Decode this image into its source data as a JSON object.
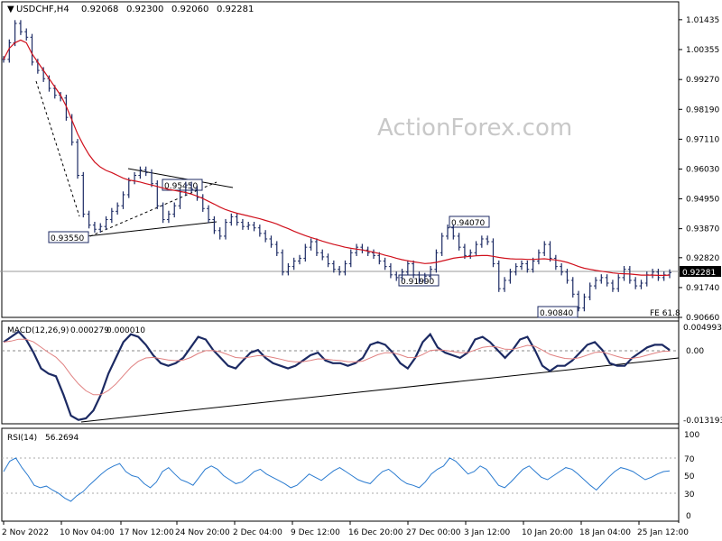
{
  "chart_data": {
    "type": "line",
    "symbol": "USDCHF,H4",
    "ohlc_header": [
      "0.92068",
      "0.92300",
      "0.92060",
      "0.92281"
    ],
    "watermark": "ActionForex.com",
    "last_price": "0.92281",
    "fe_label": "FE 61.8",
    "price_axis": {
      "ylim": [
        0.9066,
        1.0143
      ],
      "ticks": [
        "1.01435",
        "1.00355",
        "0.99270",
        "0.98190",
        "0.97110",
        "0.96030",
        "0.94950",
        "0.93870",
        "0.92820",
        "0.91740",
        "0.90660"
      ]
    },
    "x_labels": [
      "2 Nov 2022",
      "10 Nov 04:00",
      "17 Nov 12:00",
      "24 Nov 20:00",
      "2 Dec 04:00",
      "9 Dec 12:00",
      "16 Dec 20:00",
      "27 Dec 00:00",
      "3 Jan 12:00",
      "10 Jan 20:00",
      "18 Jan 04:00",
      "25 Jan 12:00"
    ],
    "annotations": [
      "0.93550",
      "0.95450",
      "0.94070",
      "0.91990",
      "0.90840"
    ],
    "series": [
      {
        "name": "USDCHF",
        "color": "#1c2a63",
        "values": [
          1.0,
          1.006,
          1.013,
          1.01,
          1.008,
          0.999,
          0.996,
          0.993,
          0.9895,
          0.987,
          0.986,
          0.979,
          0.97,
          0.958,
          0.944,
          0.94,
          0.9385,
          0.9395,
          0.942,
          0.945,
          0.947,
          0.951,
          0.956,
          0.958,
          0.96,
          0.959,
          0.955,
          0.947,
          0.942,
          0.944,
          0.947,
          0.952,
          0.9545,
          0.953,
          0.95,
          0.946,
          0.942,
          0.938,
          0.936,
          0.941,
          0.943,
          0.941,
          0.9395,
          0.94,
          0.939,
          0.937,
          0.935,
          0.933,
          0.93,
          0.923,
          0.925,
          0.927,
          0.928,
          0.932,
          0.934,
          0.93,
          0.9285,
          0.926,
          0.924,
          0.923,
          0.926,
          0.93,
          0.932,
          0.931,
          0.93,
          0.929,
          0.927,
          0.925,
          0.922,
          0.921,
          0.923,
          0.926,
          0.922,
          0.92,
          0.9215,
          0.924,
          0.93,
          0.936,
          0.939,
          0.936,
          0.932,
          0.929,
          0.93,
          0.933,
          0.935,
          0.934,
          0.926,
          0.917,
          0.92,
          0.923,
          0.925,
          0.926,
          0.924,
          0.927,
          0.93,
          0.933,
          0.928,
          0.925,
          0.923,
          0.92,
          0.915,
          0.91,
          0.914,
          0.918,
          0.92,
          0.921,
          0.919,
          0.917,
          0.921,
          0.924,
          0.92,
          0.918,
          0.919,
          0.922,
          0.923,
          0.921,
          0.922,
          0.9228
        ]
      },
      {
        "name": "SMA",
        "color": "#d0101c",
        "values": [
          1.0,
          1.004,
          1.006,
          1.007,
          1.006,
          1.002,
          0.999,
          0.996,
          0.993,
          0.99,
          0.987,
          0.983,
          0.978,
          0.973,
          0.969,
          0.9655,
          0.9628,
          0.961,
          0.9598,
          0.959,
          0.958,
          0.957,
          0.9563,
          0.956,
          0.9556,
          0.955,
          0.9545,
          0.954,
          0.9534,
          0.9529,
          0.9526,
          0.9522,
          0.9518,
          0.9512,
          0.9505,
          0.9496,
          0.9486,
          0.9476,
          0.9465,
          0.9456,
          0.9449,
          0.9443,
          0.9438,
          0.9433,
          0.9428,
          0.9423,
          0.9417,
          0.9411,
          0.9404,
          0.9395,
          0.9387,
          0.9378,
          0.937,
          0.9362,
          0.9355,
          0.9349,
          0.9342,
          0.9336,
          0.933,
          0.9325,
          0.932,
          0.9316,
          0.9313,
          0.931,
          0.9306,
          0.9302,
          0.9297,
          0.9291,
          0.9286,
          0.928,
          0.9275,
          0.9271,
          0.9267,
          0.9264,
          0.9261,
          0.9262,
          0.9265,
          0.927,
          0.9275,
          0.928,
          0.9283,
          0.9285,
          0.9287,
          0.9289,
          0.929,
          0.929,
          0.9287,
          0.9283,
          0.928,
          0.9278,
          0.9277,
          0.9277,
          0.9276,
          0.9276,
          0.9277,
          0.9278,
          0.9276,
          0.9274,
          0.927,
          0.9265,
          0.9258,
          0.925,
          0.9244,
          0.924,
          0.9236,
          0.9233,
          0.923,
          0.9227,
          0.9225,
          0.9224,
          0.9223,
          0.9221,
          0.9219,
          0.9219,
          0.9219,
          0.9218,
          0.9218,
          0.9219
        ]
      }
    ],
    "macd": {
      "label": "MACD(12,26,9)",
      "values_text": [
        "0.000279",
        "0.000010"
      ],
      "ticks": [
        "0.004993",
        "0.00",
        "-0.013193"
      ],
      "ylim": [
        -0.013193,
        0.004993
      ],
      "macd_values": [
        0.002,
        0.003,
        0.004,
        0.0025,
        0.0,
        -0.003,
        -0.004,
        -0.0045,
        -0.008,
        -0.012,
        -0.0128,
        -0.0125,
        -0.011,
        -0.008,
        -0.004,
        -0.001,
        0.002,
        0.0035,
        0.003,
        0.0015,
        -0.0005,
        -0.002,
        -0.0025,
        -0.002,
        -0.001,
        0.001,
        0.003,
        0.0025,
        0.0005,
        -0.001,
        -0.0025,
        -0.003,
        -0.0015,
        0.0,
        0.0005,
        -0.001,
        -0.002,
        -0.0025,
        -0.003,
        -0.0025,
        -0.0015,
        -0.0005,
        0.0,
        -0.0015,
        -0.002,
        -0.002,
        -0.0025,
        -0.002,
        -0.001,
        0.0015,
        0.002,
        0.0015,
        0.0,
        -0.002,
        -0.003,
        -0.001,
        0.002,
        0.0035,
        0.001,
        0.0,
        -0.0005,
        -0.001,
        0.0,
        0.0025,
        0.003,
        0.002,
        0.0005,
        -0.001,
        0.0005,
        0.0025,
        0.003,
        0.0005,
        -0.0025,
        -0.0035,
        -0.0025,
        -0.0025,
        -0.0015,
        0.0,
        0.0015,
        0.002,
        0.0005,
        -0.002,
        -0.0025,
        -0.0025,
        -0.001,
        0.0,
        0.001,
        0.0015,
        0.0015,
        0.0005
      ]
    },
    "rsi": {
      "label": "RSI(14)",
      "value_text": "56.2694",
      "ticks": [
        "100",
        "70",
        "50",
        "30",
        "0"
      ],
      "levels": [
        70,
        30
      ],
      "values": [
        55,
        68,
        72,
        60,
        50,
        38,
        35,
        37,
        32,
        28,
        22,
        18,
        25,
        30,
        38,
        45,
        52,
        58,
        62,
        65,
        55,
        50,
        48,
        40,
        35,
        42,
        55,
        60,
        52,
        45,
        42,
        38,
        48,
        58,
        62,
        58,
        50,
        45,
        40,
        42,
        48,
        55,
        58,
        52,
        48,
        44,
        40,
        35,
        38,
        45,
        52,
        48,
        44,
        50,
        56,
        60,
        55,
        50,
        45,
        42,
        40,
        48,
        55,
        58,
        52,
        45,
        40,
        38,
        35,
        42,
        52,
        58,
        62,
        72,
        68,
        60,
        52,
        55,
        62,
        58,
        48,
        38,
        35,
        42,
        50,
        58,
        62,
        55,
        48,
        45,
        50,
        55,
        60,
        58,
        52,
        45,
        38,
        32,
        40,
        48,
        55,
        60,
        58,
        55,
        50,
        45,
        48,
        52,
        55,
        56
      ]
    }
  }
}
